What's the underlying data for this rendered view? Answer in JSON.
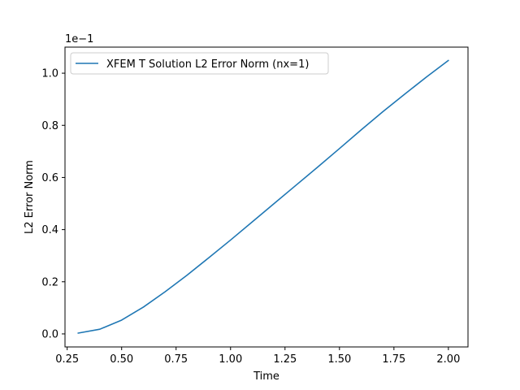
{
  "chart_data": {
    "type": "line",
    "title": "",
    "xlabel": "Time",
    "ylabel": "L2 Error Norm",
    "y_offset_label": "1e−1",
    "xlim": [
      0.24,
      2.09
    ],
    "ylim": [
      -0.05,
      1.1
    ],
    "grid": false,
    "legend_position": "top-left",
    "x_ticks": [
      {
        "value": 0.25,
        "label": "0.25"
      },
      {
        "value": 0.5,
        "label": "0.50"
      },
      {
        "value": 0.75,
        "label": "0.75"
      },
      {
        "value": 1.0,
        "label": "1.00"
      },
      {
        "value": 1.25,
        "label": "1.25"
      },
      {
        "value": 1.5,
        "label": "1.50"
      },
      {
        "value": 1.75,
        "label": "1.75"
      },
      {
        "value": 2.0,
        "label": "2.00"
      }
    ],
    "y_ticks": [
      {
        "value": 0.0,
        "label": "0.0"
      },
      {
        "value": 0.2,
        "label": "0.2"
      },
      {
        "value": 0.4,
        "label": "0.4"
      },
      {
        "value": 0.6,
        "label": "0.6"
      },
      {
        "value": 0.8,
        "label": "0.8"
      },
      {
        "value": 1.0,
        "label": "1.0"
      }
    ],
    "series": [
      {
        "name": "XFEM T Solution L2 Error Norm (nx=1)",
        "color": "#1f77b4",
        "x": [
          0.3,
          0.4,
          0.5,
          0.6,
          0.7,
          0.8,
          0.9,
          1.0,
          1.1,
          1.2,
          1.3,
          1.4,
          1.5,
          1.6,
          1.7,
          1.8,
          1.9,
          2.0
        ],
        "y": [
          0.003,
          0.018,
          0.053,
          0.103,
          0.162,
          0.225,
          0.292,
          0.36,
          0.43,
          0.5,
          0.57,
          0.64,
          0.711,
          0.783,
          0.853,
          0.92,
          0.986,
          1.049
        ]
      }
    ]
  }
}
